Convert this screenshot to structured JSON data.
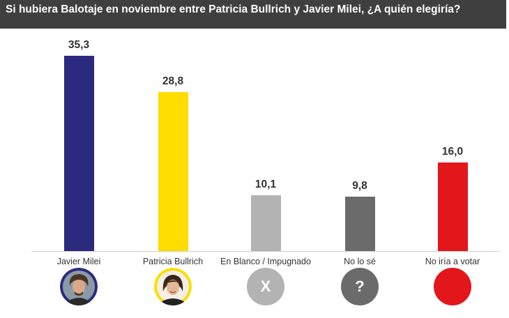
{
  "header": {
    "title": "Si hubiera Balotaje en noviembre entre Patricia Bullrich y Javier Milei, ¿A quién elegiría?"
  },
  "chart_data": {
    "type": "bar",
    "title": "Si hubiera Balotaje en noviembre entre Patricia Bullrich y Javier Milei, ¿A quién elegiría?",
    "xlabel": "",
    "ylabel": "",
    "ylim": [
      0,
      35.3
    ],
    "grid": false,
    "categories": [
      "Javier Milei",
      "Patricia Bullrich",
      "En Blanco / Impugnado",
      "No lo sé",
      "No iría a votar"
    ],
    "values": [
      35.3,
      28.8,
      10.1,
      9.8,
      16.0
    ],
    "value_labels": [
      "35,3",
      "28,8",
      "10,1",
      "9,8",
      "16,0"
    ],
    "colors": [
      "#2b2a7e",
      "#ffdd00",
      "#b3b3b3",
      "#6b6b6b",
      "#e3161b"
    ],
    "icons": [
      {
        "name": "javier-milei-avatar",
        "border": "#2b2a7e"
      },
      {
        "name": "patricia-bullrich-avatar",
        "border": "#ffdd00"
      },
      {
        "name": "x-icon",
        "glyph": "X",
        "color": "#b3b3b3"
      },
      {
        "name": "question-mark-icon",
        "glyph": "?",
        "color": "#6b6b6b"
      },
      {
        "name": "red-circle-icon",
        "glyph": "",
        "color": "#e3161b"
      }
    ]
  }
}
